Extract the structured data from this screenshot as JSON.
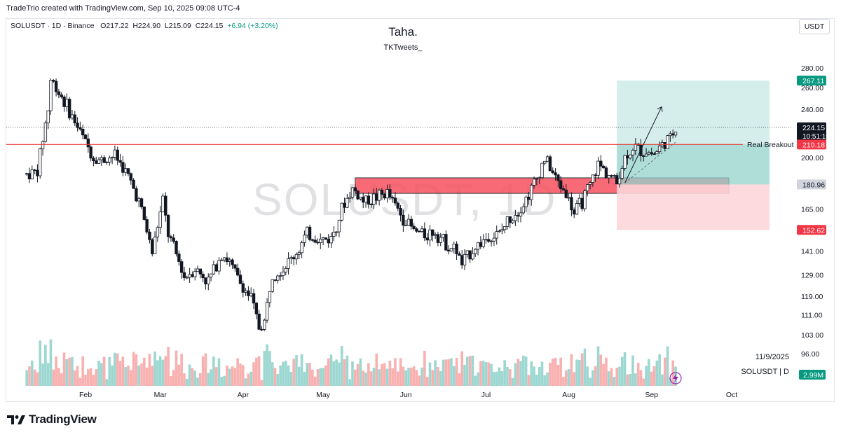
{
  "caption": "TradeTrio created with TradingView.com, Sep 10, 2025 09:08 UTC-4",
  "symbol_line": {
    "name": "SOLUSDT · 1D · Binance",
    "open": "O217.22",
    "high": "H224.90",
    "low": "L215.09",
    "close": "C224.15",
    "change": "+6.94 (+3.20%)"
  },
  "author": "Taha.",
  "author_handle": "TKTweets_",
  "currency_button": "USDT",
  "watermark": "SOLUSDT, 1D",
  "footer": {
    "date": "11/9/2025",
    "symbol": "SOLUSDT | D",
    "brand": "TradingView"
  },
  "annotation": {
    "breakout_label": "Real Breakout"
  },
  "price_badges": {
    "target": "267.11",
    "current": "224.15",
    "countdown": "10:51:10",
    "breakout": "210.18",
    "entry": "180.96",
    "stop": "152.62",
    "volume": "2.99M"
  },
  "colors": {
    "up": "#089981",
    "down": "#f23645",
    "target_zone": "#b2dfdb",
    "stop_zone": "#fcd6d9",
    "demand_zone": "#f7525f",
    "breakout_line": "#e53935"
  },
  "chart_data": {
    "type": "candlestick",
    "x_ticks": [
      "Feb",
      "Mar",
      "Apr",
      "May",
      "Jun",
      "Jul",
      "Aug",
      "Sep",
      "Oct"
    ],
    "y_ticks": [
      96.0,
      103.0,
      111.0,
      119.0,
      129.0,
      141.0,
      165.0,
      200.0,
      240.0,
      260.0,
      280.0
    ],
    "y_tick_labels": [
      "96.00",
      "103.00",
      "111.00",
      "119.00",
      "129.00",
      "141.00",
      "165.00",
      "200.00",
      "240.00",
      "260.00",
      "280.00"
    ],
    "y_scale": "log",
    "close_path": [
      [
        "2025-01-10",
        188
      ],
      [
        "2025-01-14",
        190
      ],
      [
        "2025-01-18",
        240
      ],
      [
        "2025-01-19",
        268
      ],
      [
        "2025-01-23",
        252
      ],
      [
        "2025-01-27",
        233
      ],
      [
        "2025-02-01",
        212
      ],
      [
        "2025-02-04",
        200
      ],
      [
        "2025-02-07",
        198
      ],
      [
        "2025-02-12",
        202
      ],
      [
        "2025-02-16",
        190
      ],
      [
        "2025-02-21",
        170
      ],
      [
        "2025-02-26",
        140
      ],
      [
        "2025-03-02",
        170
      ],
      [
        "2025-03-04",
        150
      ],
      [
        "2025-03-10",
        128
      ],
      [
        "2025-03-14",
        132
      ],
      [
        "2025-03-19",
        126
      ],
      [
        "2025-03-24",
        140
      ],
      [
        "2025-03-27",
        135
      ],
      [
        "2025-03-31",
        125
      ],
      [
        "2025-04-04",
        118
      ],
      [
        "2025-04-07",
        106
      ],
      [
        "2025-04-09",
        108
      ],
      [
        "2025-04-12",
        130
      ],
      [
        "2025-04-16",
        132
      ],
      [
        "2025-04-21",
        140
      ],
      [
        "2025-04-25",
        150
      ],
      [
        "2025-04-30",
        147
      ],
      [
        "2025-05-04",
        148
      ],
      [
        "2025-05-08",
        165
      ],
      [
        "2025-05-12",
        178
      ],
      [
        "2025-05-16",
        170
      ],
      [
        "2025-05-20",
        172
      ],
      [
        "2025-05-25",
        175
      ],
      [
        "2025-05-30",
        162
      ],
      [
        "2025-06-04",
        152
      ],
      [
        "2025-06-08",
        150
      ],
      [
        "2025-06-12",
        152
      ],
      [
        "2025-06-16",
        145
      ],
      [
        "2025-06-20",
        141
      ],
      [
        "2025-06-22",
        134
      ],
      [
        "2025-06-26",
        142
      ],
      [
        "2025-07-01",
        148
      ],
      [
        "2025-07-06",
        150
      ],
      [
        "2025-07-10",
        160
      ],
      [
        "2025-07-15",
        168
      ],
      [
        "2025-07-20",
        185
      ],
      [
        "2025-07-23",
        200
      ],
      [
        "2025-07-27",
        185
      ],
      [
        "2025-07-31",
        175
      ],
      [
        "2025-08-03",
        162
      ],
      [
        "2025-08-06",
        170
      ],
      [
        "2025-08-09",
        180
      ],
      [
        "2025-08-12",
        195
      ],
      [
        "2025-08-16",
        188
      ],
      [
        "2025-08-19",
        182
      ],
      [
        "2025-08-22",
        200
      ],
      [
        "2025-08-25",
        208
      ],
      [
        "2025-08-29",
        205
      ],
      [
        "2025-09-02",
        203
      ],
      [
        "2025-09-05",
        210
      ],
      [
        "2025-09-08",
        215
      ],
      [
        "2025-09-10",
        224.15
      ]
    ],
    "levels": [
      {
        "label": "Real Breakout",
        "value": 210.18
      },
      {
        "label": "",
        "value": 224.15
      }
    ],
    "zones": [
      {
        "kind": "demand",
        "from": 175,
        "to": 185.5
      },
      {
        "kind": "target",
        "from": 180.96,
        "to": 267.11
      },
      {
        "kind": "stop",
        "from": 152.62,
        "to": 180.96
      }
    ],
    "volume_last": "2.99M"
  }
}
